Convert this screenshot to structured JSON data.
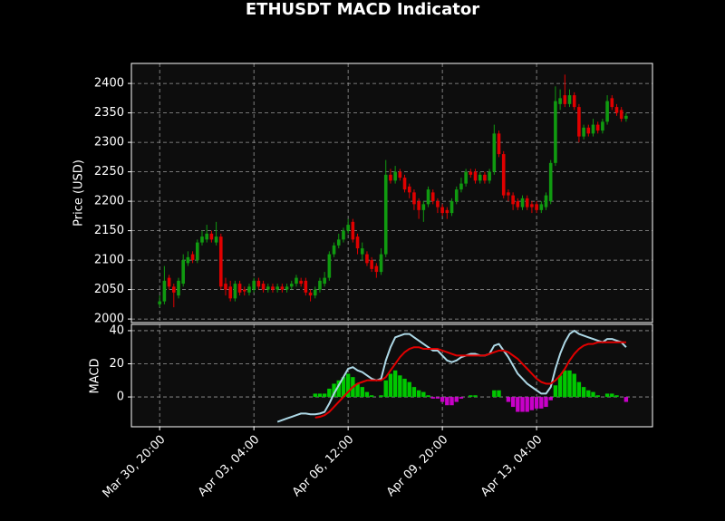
{
  "chart_data": [
    {
      "type": "candlestick",
      "title": "ETHUSDT MACD Indicator",
      "ylabel": "Price (USD)",
      "up_color": "#109a10",
      "down_color": "#e00000",
      "grid": true,
      "xlim": [
        -6,
        104.6
      ],
      "ylim": [
        1994,
        2434
      ],
      "yticks": [
        2000,
        2050,
        2100,
        2150,
        2200,
        2250,
        2300,
        2350,
        2400
      ],
      "open": [
        2025,
        2030,
        2070,
        2055,
        2040,
        2060,
        2095,
        2110,
        2100,
        2130,
        2135,
        2145,
        2130,
        2140,
        2060,
        2055,
        2035,
        2060,
        2050,
        2045,
        2050,
        2065,
        2060,
        2050,
        2055,
        2050,
        2055,
        2050,
        2055,
        2060,
        2065,
        2065,
        2045,
        2040,
        2050,
        2060,
        2070,
        2110,
        2125,
        2135,
        2150,
        2165,
        2140,
        2110,
        2110,
        2100,
        2090,
        2080,
        2110,
        2245,
        2235,
        2250,
        2240,
        2225,
        2215,
        2200,
        2185,
        2195,
        2215,
        2200,
        2190,
        2185,
        2180,
        2200,
        2220,
        2230,
        2250,
        2250,
        2235,
        2245,
        2235,
        2250,
        2315,
        2280,
        2215,
        2210,
        2200,
        2190,
        2205,
        2195,
        2195,
        2185,
        2190,
        2200,
        2265,
        2365,
        2380,
        2365,
        2380,
        2360,
        2310,
        2325,
        2315,
        2330,
        2320,
        2335,
        2375,
        2360,
        2355,
        2340
      ],
      "high": [
        2040,
        2090,
        2075,
        2060,
        2070,
        2110,
        2115,
        2115,
        2135,
        2150,
        2160,
        2150,
        2165,
        2145,
        2070,
        2065,
        2065,
        2065,
        2055,
        2060,
        2070,
        2070,
        2065,
        2060,
        2060,
        2060,
        2060,
        2060,
        2065,
        2075,
        2070,
        2070,
        2050,
        2055,
        2070,
        2080,
        2115,
        2130,
        2145,
        2155,
        2170,
        2170,
        2145,
        2130,
        2115,
        2105,
        2095,
        2120,
        2270,
        2255,
        2260,
        2255,
        2245,
        2230,
        2220,
        2205,
        2200,
        2225,
        2220,
        2205,
        2195,
        2190,
        2205,
        2225,
        2240,
        2255,
        2255,
        2255,
        2250,
        2250,
        2255,
        2330,
        2320,
        2285,
        2220,
        2215,
        2205,
        2210,
        2210,
        2200,
        2200,
        2200,
        2215,
        2270,
        2395,
        2390,
        2415,
        2390,
        2385,
        2365,
        2330,
        2330,
        2340,
        2335,
        2340,
        2380,
        2380,
        2365,
        2360,
        2350
      ],
      "low": [
        2020,
        2025,
        2050,
        2020,
        2035,
        2055,
        2090,
        2095,
        2095,
        2125,
        2130,
        2130,
        2125,
        2050,
        2040,
        2030,
        2030,
        2040,
        2040,
        2040,
        2045,
        2050,
        2045,
        2045,
        2045,
        2045,
        2045,
        2045,
        2050,
        2055,
        2055,
        2040,
        2030,
        2035,
        2045,
        2055,
        2065,
        2105,
        2120,
        2130,
        2145,
        2130,
        2110,
        2100,
        2090,
        2080,
        2070,
        2075,
        2105,
        2230,
        2230,
        2235,
        2215,
        2205,
        2185,
        2170,
        2165,
        2190,
        2195,
        2180,
        2175,
        2170,
        2175,
        2195,
        2215,
        2225,
        2240,
        2230,
        2230,
        2230,
        2230,
        2245,
        2275,
        2205,
        2200,
        2185,
        2185,
        2185,
        2185,
        2180,
        2180,
        2180,
        2185,
        2195,
        2260,
        2355,
        2360,
        2360,
        2355,
        2300,
        2305,
        2310,
        2310,
        2315,
        2315,
        2330,
        2355,
        2345,
        2335,
        2335
      ],
      "close": [
        2030,
        2065,
        2055,
        2045,
        2065,
        2100,
        2105,
        2100,
        2130,
        2140,
        2145,
        2135,
        2140,
        2055,
        2050,
        2035,
        2060,
        2045,
        2047,
        2055,
        2065,
        2055,
        2050,
        2055,
        2050,
        2055,
        2050,
        2055,
        2060,
        2070,
        2060,
        2045,
        2040,
        2050,
        2065,
        2070,
        2110,
        2125,
        2135,
        2150,
        2160,
        2135,
        2120,
        2120,
        2095,
        2085,
        2080,
        2110,
        2245,
        2235,
        2250,
        2240,
        2220,
        2215,
        2195,
        2185,
        2195,
        2220,
        2200,
        2190,
        2180,
        2180,
        2200,
        2220,
        2230,
        2250,
        2245,
        2235,
        2245,
        2235,
        2250,
        2315,
        2280,
        2210,
        2210,
        2195,
        2190,
        2205,
        2190,
        2190,
        2185,
        2195,
        2210,
        2265,
        2370,
        2375,
        2365,
        2380,
        2360,
        2310,
        2325,
        2315,
        2330,
        2320,
        2335,
        2370,
        2360,
        2350,
        2340,
        2345
      ]
    },
    {
      "type": "macd",
      "ylabel": "MACD",
      "grid": true,
      "xlim": [
        -6,
        104.6
      ],
      "ylim": [
        -18,
        43.8
      ],
      "yticks": [
        0,
        20,
        40
      ],
      "xticks": [
        {
          "value": 0,
          "label": "Mar 30, 20:00"
        },
        {
          "value": 20,
          "label": "Apr 03, 04:00"
        },
        {
          "value": 40,
          "label": "Apr 06, 12:00"
        },
        {
          "value": 60,
          "label": "Apr 09, 20:00"
        },
        {
          "value": 80,
          "label": "Apr 13, 04:00"
        }
      ],
      "series": [
        {
          "style": "bar",
          "color": "#00c800",
          "negative_color": "#c800c8",
          "values": [
            null,
            null,
            null,
            null,
            null,
            null,
            null,
            null,
            null,
            null,
            null,
            null,
            null,
            null,
            null,
            null,
            null,
            null,
            null,
            null,
            null,
            null,
            null,
            null,
            null,
            null,
            null,
            null,
            null,
            null,
            null,
            null,
            null,
            2,
            2,
            2,
            5,
            8,
            10,
            12,
            14,
            12,
            8,
            6,
            3,
            1,
            0,
            1,
            10,
            14,
            16,
            13,
            11,
            9,
            6,
            4,
            3,
            1,
            -1,
            -1,
            -3,
            -5,
            -5,
            -3,
            -1,
            0,
            1,
            1,
            0,
            0,
            0,
            4,
            4,
            0,
            -3,
            -6,
            -9,
            -9,
            -9,
            -8,
            -7,
            -7,
            -6,
            -2,
            7,
            13,
            16,
            16,
            14,
            9,
            6,
            4,
            3,
            1,
            0,
            2,
            2,
            1,
            0,
            -3
          ]
        },
        {
          "style": "line",
          "color": "#add8e6",
          "values": [
            null,
            null,
            null,
            null,
            null,
            null,
            null,
            null,
            null,
            null,
            null,
            null,
            null,
            null,
            null,
            null,
            null,
            null,
            null,
            null,
            null,
            null,
            null,
            null,
            null,
            -15,
            -14,
            -13,
            -12,
            -11,
            -10,
            -10,
            -10.5,
            -10.5,
            -10,
            -9,
            -4,
            2,
            7,
            12,
            17,
            18,
            16,
            15,
            13,
            11,
            10,
            11,
            22,
            30,
            36,
            37,
            38,
            38,
            36,
            34,
            32,
            30,
            28,
            28,
            25,
            22,
            21,
            22,
            24,
            25,
            26,
            26,
            25,
            25,
            26,
            31,
            32,
            28,
            24,
            19,
            14,
            11,
            8,
            6,
            4,
            2,
            2,
            6,
            17,
            26,
            33,
            38,
            40,
            38,
            37,
            36,
            35,
            34,
            33,
            35,
            35,
            34,
            33,
            30
          ]
        },
        {
          "style": "line",
          "color": "#e00000",
          "values": [
            null,
            null,
            null,
            null,
            null,
            null,
            null,
            null,
            null,
            null,
            null,
            null,
            null,
            null,
            null,
            null,
            null,
            null,
            null,
            null,
            null,
            null,
            null,
            null,
            null,
            null,
            null,
            null,
            null,
            null,
            null,
            null,
            null,
            -12.5,
            -12,
            -11,
            -9,
            -6,
            -3,
            0,
            3,
            6,
            8,
            9,
            10,
            10,
            10,
            10,
            12,
            16,
            20,
            24,
            27,
            29,
            30,
            30,
            29,
            29,
            29,
            29,
            28,
            27,
            26,
            25,
            25,
            25,
            25,
            25,
            25,
            25,
            26,
            27,
            28,
            28,
            27,
            25,
            23,
            20,
            17,
            14,
            11,
            9,
            8,
            8,
            10,
            13,
            17,
            22,
            26,
            29,
            31,
            32,
            32,
            33,
            33,
            33,
            33,
            33,
            33,
            33
          ]
        }
      ]
    }
  ]
}
